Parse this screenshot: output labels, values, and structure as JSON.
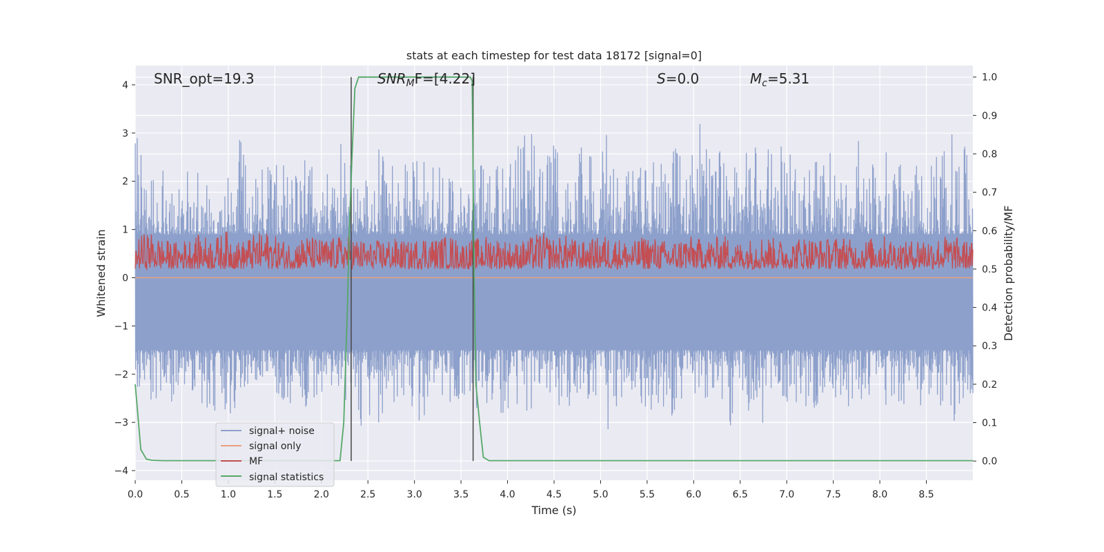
{
  "chart_data": {
    "type": "line",
    "title": "stats at each timestep for test data 18172 [signal=0]",
    "xlabel": "Time (s)",
    "ylabel_left": "Whitened strain",
    "ylabel_right": "Detection probability/MF",
    "xlim": [
      0.0,
      9.0
    ],
    "ylim_left": [
      -4.2,
      4.4
    ],
    "ylim_right": [
      -0.05,
      1.03
    ],
    "x_ticks": [
      "0.0",
      "0.5",
      "1.0",
      "1.5",
      "2.0",
      "2.5",
      "3.0",
      "3.5",
      "4.0",
      "4.5",
      "5.0",
      "5.5",
      "6.0",
      "6.5",
      "7.0",
      "7.5",
      "8.0",
      "8.5"
    ],
    "y_ticks_left": [
      "−4",
      "−3",
      "−2",
      "−1",
      "0",
      "1",
      "2",
      "3",
      "4"
    ],
    "y_ticks_right": [
      "0.0",
      "0.1",
      "0.2",
      "0.3",
      "0.4",
      "0.5",
      "0.6",
      "0.7",
      "0.8",
      "0.9",
      "1.0"
    ],
    "grid": true,
    "legend_position": "lower-left",
    "annotations": {
      "snr_opt": "SNR_opt=19.3",
      "snr_mf_main": "SNR",
      "snr_mf_sub": "M",
      "snr_mf_rest": "F=[4.22]",
      "s_main": "S",
      "s_rest": "=0.0",
      "mc_main": "M",
      "mc_sub": "c",
      "mc_rest": "=5.31"
    },
    "vlines": [
      2.32,
      3.63
    ],
    "series": [
      {
        "name": "signal+ noise",
        "color": "#8da0cb",
        "axis": "left",
        "style": "noise",
        "x_range": [
          0.0,
          9.0
        ],
        "positive_envelope": [
          3.1,
          2.0,
          2.3,
          1.9,
          2.5,
          2.2,
          1.8,
          2.0,
          2.9,
          2.4,
          2.3,
          2.8,
          2.1,
          2.7,
          2.0,
          2.5,
          2.9,
          2.0,
          2.2,
          3.0,
          2.3,
          2.4,
          3.1,
          2.2,
          2.8,
          2.0,
          2.5,
          2.3,
          2.7,
          2.9,
          3.3,
          2.3,
          2.8,
          2.2,
          2.8,
          3.2,
          3.0,
          2.6,
          2.6,
          2.4,
          2.6,
          2.8,
          2.6,
          3.4,
          2.5,
          2.7,
          2.2,
          3.0,
          2.7,
          3.0,
          2.6,
          2.2,
          2.8,
          2.8,
          2.2,
          3.1,
          2.9,
          2.7,
          2.8,
          2.6,
          2.2,
          2.5,
          3.2,
          2.8,
          2.6
        ],
        "negative_envelope": [
          -2.3,
          -2.5,
          -2.9,
          -2.5,
          -2.3,
          -2.6,
          -2.8,
          -2.9,
          -2.6,
          -2.3,
          -2.4,
          -2.5,
          -2.7,
          -2.8,
          -2.5,
          -2.3,
          -2.6,
          -3.0,
          -3.3,
          -2.8,
          -2.6,
          -2.7,
          -3.1,
          -2.5,
          -2.6,
          -2.6,
          -2.8,
          -2.7,
          -2.9,
          -2.6,
          -2.8,
          -2.5,
          -2.4,
          -3.1,
          -2.6,
          -2.5,
          -3.5,
          -2.6,
          -2.5,
          -2.7,
          -2.8,
          -2.9,
          -2.4,
          -2.9,
          -2.3,
          -2.8,
          -3.4,
          -2.7,
          -3.2,
          -2.5,
          -2.8,
          -2.6,
          -2.9,
          -2.5,
          -2.6,
          -2.8,
          -2.6,
          -2.9,
          -2.5,
          -2.7,
          -2.8,
          -2.6,
          -2.8,
          -3.2,
          -2.4
        ]
      },
      {
        "name": "signal only",
        "color": "#e8a07f",
        "axis": "left",
        "style": "flat",
        "value": 0.0
      },
      {
        "name": "MF",
        "color": "#c44e52",
        "axis": "right",
        "style": "mf",
        "x_range": [
          0.0,
          9.0
        ],
        "baseline": 0.5,
        "upper_envelope": [
          0.57,
          0.59,
          0.57,
          0.56,
          0.57,
          0.58,
          0.57,
          0.59,
          0.56,
          0.58,
          0.59,
          0.57,
          0.56,
          0.58,
          0.57,
          0.57,
          0.58,
          0.57,
          0.56,
          0.57,
          0.57,
          0.56,
          0.58,
          0.57,
          0.58,
          0.56,
          0.57,
          0.58,
          0.57,
          0.56,
          0.57,
          0.59,
          0.57,
          0.58,
          0.56,
          0.57,
          0.58,
          0.57,
          0.56,
          0.58,
          0.57,
          0.56,
          0.58,
          0.57,
          0.57,
          0.58,
          0.56,
          0.57,
          0.58,
          0.57,
          0.56,
          0.58,
          0.57,
          0.57,
          0.58,
          0.56,
          0.57,
          0.58,
          0.57,
          0.56,
          0.58,
          0.57,
          0.58,
          0.57,
          0.56
        ]
      },
      {
        "name": "signal statistics",
        "color": "#55a868",
        "axis": "right",
        "style": "line",
        "x": [
          0.0,
          0.06,
          0.12,
          0.18,
          0.3,
          0.5,
          1.0,
          1.5,
          2.0,
          2.2,
          2.24,
          2.28,
          2.3,
          2.33,
          2.36,
          2.4,
          2.5,
          3.0,
          3.5,
          3.6,
          3.62,
          3.64,
          3.66,
          3.7,
          3.74,
          3.8,
          4.0,
          5.0,
          6.0,
          7.0,
          8.0,
          9.0
        ],
        "y": [
          0.2,
          0.03,
          0.005,
          0.002,
          0.001,
          0.001,
          0.001,
          0.001,
          0.001,
          0.001,
          0.1,
          0.4,
          0.6,
          0.8,
          0.97,
          1.0,
          1.0,
          1.0,
          1.0,
          1.0,
          0.99,
          0.5,
          0.2,
          0.1,
          0.01,
          0.001,
          0.001,
          0.001,
          0.001,
          0.001,
          0.001,
          0.001
        ]
      }
    ]
  }
}
